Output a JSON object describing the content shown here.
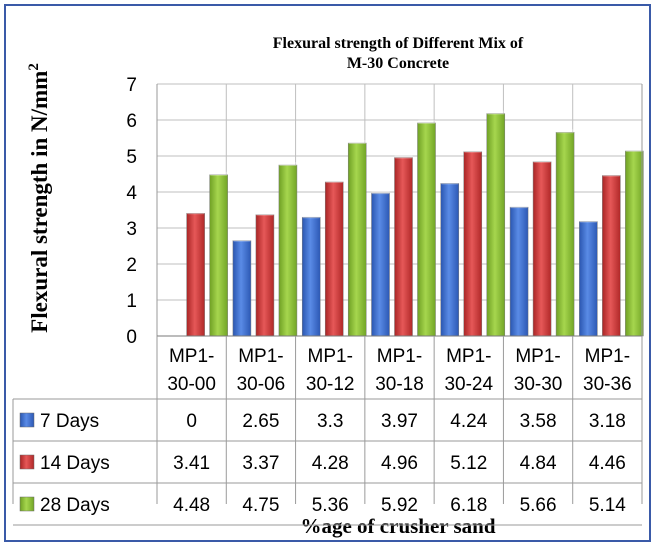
{
  "chart_data": {
    "type": "bar",
    "title_lines": [
      "Flexural strength of Different Mix of",
      "M-30 Concrete"
    ],
    "ylabel": "Flexural strength in N/mm",
    "ylabel_sup": "2",
    "xlabel": "%age of crusher sand",
    "ylim": [
      0,
      7
    ],
    "yticks": [
      "0",
      "1",
      "2",
      "3",
      "4",
      "5",
      "6",
      "7"
    ],
    "grid": true,
    "legend": "data-table",
    "category_lines": [
      [
        "MP1-",
        "30-00"
      ],
      [
        "MP1-",
        "30-06"
      ],
      [
        "MP1-",
        "30-12"
      ],
      [
        "MP1-",
        "30-18"
      ],
      [
        "MP1-",
        "30-24"
      ],
      [
        "MP1-",
        "30-30"
      ],
      [
        "MP1-",
        "30-36"
      ]
    ],
    "series": [
      {
        "name": "7 Days",
        "color": "#3B6FD0",
        "values": [
          0,
          2.65,
          3.3,
          3.97,
          4.24,
          3.58,
          3.18
        ],
        "labels": [
          "0",
          "2.65",
          "3.3",
          "3.97",
          "4.24",
          "3.58",
          "3.18"
        ]
      },
      {
        "name": "14 Days",
        "color": "#D23A3A",
        "values": [
          3.41,
          3.37,
          4.28,
          4.96,
          5.12,
          4.84,
          4.46
        ],
        "labels": [
          "3.41",
          "3.37",
          "4.28",
          "4.96",
          "5.12",
          "4.84",
          "4.46"
        ]
      },
      {
        "name": "28 Days",
        "color": "#8EC33A",
        "values": [
          4.48,
          4.75,
          5.36,
          5.92,
          6.18,
          5.66,
          5.14
        ],
        "labels": [
          "4.48",
          "4.75",
          "5.36",
          "5.92",
          "6.18",
          "5.66",
          "5.14"
        ]
      }
    ]
  }
}
